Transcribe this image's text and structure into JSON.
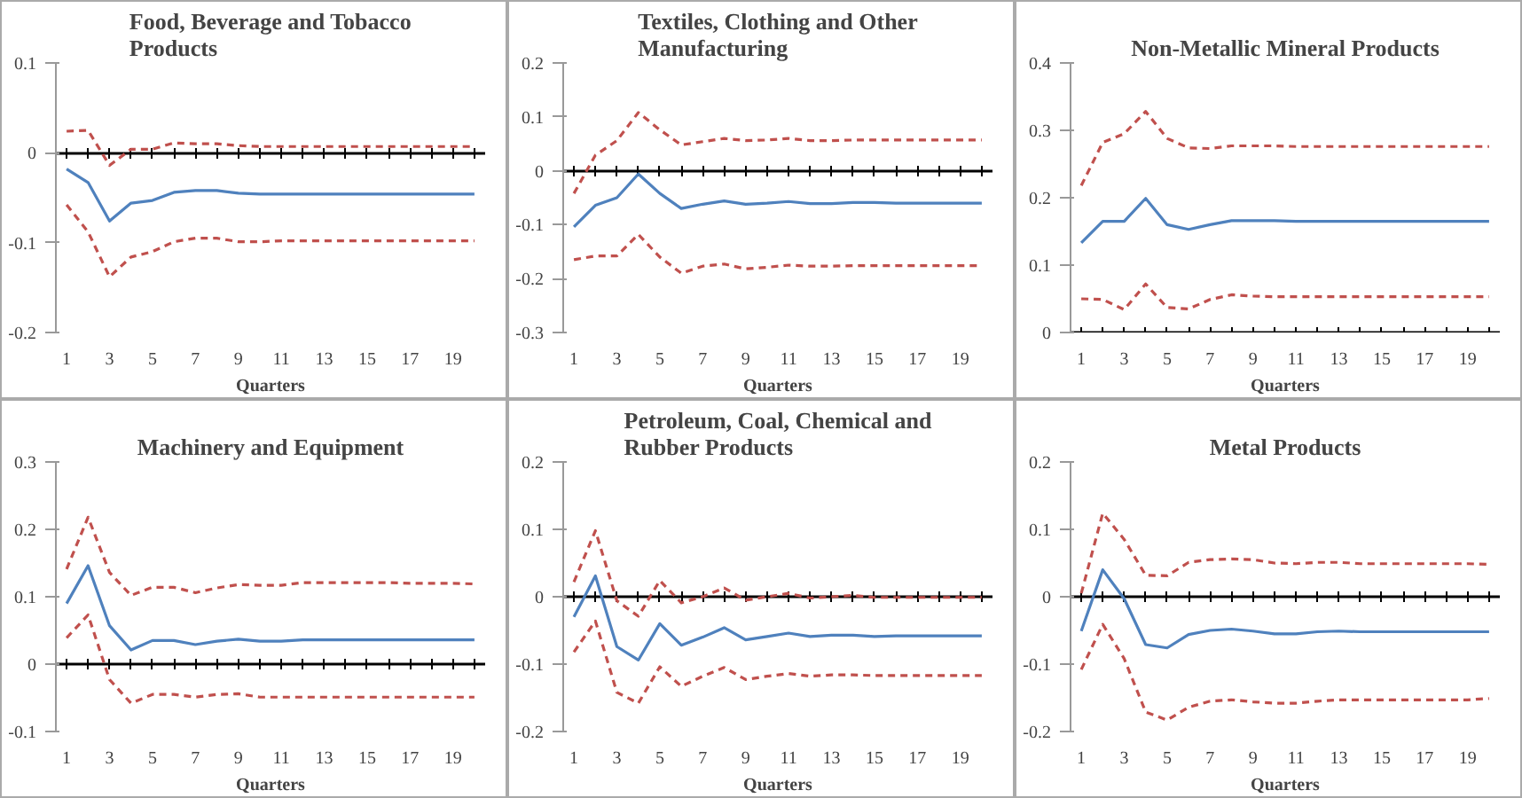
{
  "chart_data": [
    {
      "type": "line",
      "title": "Food, Beverage and Tobacco\nProducts",
      "xlabel": "Quarters",
      "x": [
        1,
        2,
        3,
        4,
        5,
        6,
        7,
        8,
        9,
        10,
        11,
        12,
        13,
        14,
        15,
        16,
        17,
        18,
        19,
        20
      ],
      "xlim": [
        0.5,
        20.5
      ],
      "xticks": [
        1,
        3,
        5,
        7,
        9,
        11,
        13,
        15,
        17,
        19
      ],
      "ylim": [
        -0.2,
        0.1
      ],
      "yticks": [
        {
          "value": -0.2,
          "label": "-0.2"
        },
        {
          "value": -0.1,
          "label": "-0.1"
        },
        0,
        {
          "value": 0.1,
          "label": "0.1"
        }
      ],
      "series": [
        {
          "color": "#4f81bd",
          "line_style": "solid",
          "values": [
            -0.018,
            -0.033,
            -0.076,
            -0.056,
            -0.053,
            -0.044,
            -0.042,
            -0.042,
            -0.045,
            -0.046,
            -0.046,
            -0.046,
            -0.046,
            -0.046,
            -0.046,
            -0.046,
            -0.046,
            -0.046,
            -0.046,
            -0.046
          ]
        },
        {
          "color": "#c0504d",
          "line_style": "dashed",
          "values": [
            0.024,
            0.025,
            -0.014,
            0.004,
            0.004,
            0.011,
            0.01,
            0.01,
            0.008,
            0.007,
            0.007,
            0.007,
            0.007,
            0.007,
            0.007,
            0.007,
            0.007,
            0.007,
            0.007,
            0.007
          ]
        },
        {
          "color": "#c0504d",
          "line_style": "dashed",
          "values": [
            -0.058,
            -0.088,
            -0.138,
            -0.116,
            -0.11,
            -0.099,
            -0.095,
            -0.095,
            -0.099,
            -0.099,
            -0.098,
            -0.098,
            -0.098,
            -0.098,
            -0.098,
            -0.098,
            -0.098,
            -0.098,
            -0.098,
            -0.098
          ]
        }
      ]
    },
    {
      "type": "line",
      "title": "Textiles, Clothing and Other\nManufacturing",
      "xlabel": "Quarters",
      "x": [
        1,
        2,
        3,
        4,
        5,
        6,
        7,
        8,
        9,
        10,
        11,
        12,
        13,
        14,
        15,
        16,
        17,
        18,
        19,
        20
      ],
      "xlim": [
        0.5,
        20.5
      ],
      "xticks": [
        1,
        3,
        5,
        7,
        9,
        11,
        13,
        15,
        17,
        19
      ],
      "ylim": [
        -0.3,
        0.2
      ],
      "yticks": [
        {
          "value": -0.3,
          "label": "-0.3"
        },
        {
          "value": -0.2,
          "label": "-0.2"
        },
        {
          "value": -0.1,
          "label": "-0.1"
        },
        0,
        {
          "value": 0.1,
          "label": "0.1"
        },
        {
          "value": 0.2,
          "label": "0.2"
        }
      ],
      "series": [
        {
          "color": "#4f81bd",
          "line_style": "solid",
          "values": [
            -0.104,
            -0.064,
            -0.05,
            -0.006,
            -0.042,
            -0.07,
            -0.062,
            -0.056,
            -0.062,
            -0.06,
            -0.057,
            -0.061,
            -0.061,
            -0.059,
            -0.059,
            -0.06,
            -0.06,
            -0.06,
            -0.06,
            -0.06
          ]
        },
        {
          "color": "#c0504d",
          "line_style": "dashed",
          "values": [
            -0.042,
            0.029,
            0.056,
            0.108,
            0.076,
            0.048,
            0.054,
            0.06,
            0.056,
            0.057,
            0.06,
            0.056,
            0.056,
            0.057,
            0.057,
            0.057,
            0.057,
            0.057,
            0.057,
            0.057
          ]
        },
        {
          "color": "#c0504d",
          "line_style": "dashed",
          "values": [
            -0.165,
            -0.158,
            -0.158,
            -0.118,
            -0.16,
            -0.19,
            -0.177,
            -0.173,
            -0.182,
            -0.179,
            -0.175,
            -0.177,
            -0.177,
            -0.176,
            -0.176,
            -0.176,
            -0.176,
            -0.176,
            -0.176,
            -0.176
          ]
        }
      ]
    },
    {
      "type": "line",
      "title": "Non-Metallic Mineral Products",
      "xlabel": "Quarters",
      "x": [
        1,
        2,
        3,
        4,
        5,
        6,
        7,
        8,
        9,
        10,
        11,
        12,
        13,
        14,
        15,
        16,
        17,
        18,
        19,
        20
      ],
      "xlim": [
        0.5,
        20.5
      ],
      "xticks": [
        1,
        3,
        5,
        7,
        9,
        11,
        13,
        15,
        17,
        19
      ],
      "ylim": [
        0,
        0.4
      ],
      "yticks": [
        0,
        {
          "value": 0.1,
          "label": "0.1"
        },
        {
          "value": 0.2,
          "label": "0.2"
        },
        {
          "value": 0.3,
          "label": "0.3"
        },
        {
          "value": 0.4,
          "label": "0.4"
        }
      ],
      "series": [
        {
          "color": "#4f81bd",
          "line_style": "solid",
          "values": [
            0.133,
            0.165,
            0.165,
            0.199,
            0.16,
            0.153,
            0.16,
            0.166,
            0.166,
            0.166,
            0.165,
            0.165,
            0.165,
            0.165,
            0.165,
            0.165,
            0.165,
            0.165,
            0.165,
            0.165
          ]
        },
        {
          "color": "#c0504d",
          "line_style": "dashed",
          "values": [
            0.218,
            0.282,
            0.295,
            0.328,
            0.288,
            0.274,
            0.273,
            0.277,
            0.277,
            0.277,
            0.276,
            0.276,
            0.276,
            0.276,
            0.276,
            0.276,
            0.276,
            0.276,
            0.276,
            0.276
          ]
        },
        {
          "color": "#c0504d",
          "line_style": "dashed",
          "values": [
            0.05,
            0.049,
            0.034,
            0.072,
            0.037,
            0.035,
            0.049,
            0.056,
            0.054,
            0.053,
            0.053,
            0.053,
            0.053,
            0.053,
            0.053,
            0.053,
            0.053,
            0.053,
            0.053,
            0.053
          ]
        }
      ]
    },
    {
      "type": "line",
      "title": "Machinery and Equipment",
      "xlabel": "Quarters",
      "x": [
        1,
        2,
        3,
        4,
        5,
        6,
        7,
        8,
        9,
        10,
        11,
        12,
        13,
        14,
        15,
        16,
        17,
        18,
        19,
        20
      ],
      "xlim": [
        0.5,
        20.5
      ],
      "xticks": [
        1,
        3,
        5,
        7,
        9,
        11,
        13,
        15,
        17,
        19
      ],
      "ylim": [
        -0.1,
        0.3
      ],
      "yticks": [
        {
          "value": -0.1,
          "label": "-0.1"
        },
        0,
        {
          "value": 0.1,
          "label": "0.1"
        },
        {
          "value": 0.2,
          "label": "0.2"
        },
        {
          "value": 0.3,
          "label": "0.3"
        }
      ],
      "series": [
        {
          "color": "#4f81bd",
          "line_style": "solid",
          "values": [
            0.09,
            0.146,
            0.057,
            0.021,
            0.035,
            0.035,
            0.029,
            0.034,
            0.037,
            0.034,
            0.034,
            0.036,
            0.036,
            0.036,
            0.036,
            0.036,
            0.036,
            0.036,
            0.036,
            0.036
          ]
        },
        {
          "color": "#c0504d",
          "line_style": "dashed",
          "values": [
            0.141,
            0.218,
            0.136,
            0.102,
            0.114,
            0.114,
            0.106,
            0.113,
            0.118,
            0.117,
            0.117,
            0.121,
            0.121,
            0.121,
            0.121,
            0.121,
            0.12,
            0.12,
            0.12,
            0.119
          ]
        },
        {
          "color": "#c0504d",
          "line_style": "dashed",
          "values": [
            0.039,
            0.073,
            -0.023,
            -0.058,
            -0.045,
            -0.045,
            -0.049,
            -0.045,
            -0.044,
            -0.049,
            -0.049,
            -0.049,
            -0.049,
            -0.049,
            -0.049,
            -0.049,
            -0.049,
            -0.049,
            -0.049,
            -0.049
          ]
        }
      ]
    },
    {
      "type": "line",
      "title": "Petroleum, Coal, Chemical and\nRubber Products",
      "xlabel": "Quarters",
      "x": [
        1,
        2,
        3,
        4,
        5,
        6,
        7,
        8,
        9,
        10,
        11,
        12,
        13,
        14,
        15,
        16,
        17,
        18,
        19,
        20
      ],
      "xlim": [
        0.5,
        20.5
      ],
      "xticks": [
        1,
        3,
        5,
        7,
        9,
        11,
        13,
        15,
        17,
        19
      ],
      "ylim": [
        -0.2,
        0.2
      ],
      "yticks": [
        {
          "value": -0.2,
          "label": "-0.2"
        },
        {
          "value": -0.1,
          "label": "-0.1"
        },
        0,
        {
          "value": 0.1,
          "label": "0.1"
        },
        {
          "value": 0.2,
          "label": "0.2"
        }
      ],
      "series": [
        {
          "color": "#4f81bd",
          "line_style": "solid",
          "values": [
            -0.03,
            0.031,
            -0.074,
            -0.094,
            -0.04,
            -0.072,
            -0.06,
            -0.046,
            -0.064,
            -0.059,
            -0.054,
            -0.059,
            -0.057,
            -0.057,
            -0.059,
            -0.058,
            -0.058,
            -0.058,
            -0.058,
            -0.058
          ]
        },
        {
          "color": "#c0504d",
          "line_style": "dashed",
          "values": [
            0.022,
            0.098,
            -0.006,
            -0.029,
            0.024,
            -0.009,
            0.0,
            0.013,
            -0.005,
            0.0,
            0.005,
            -0.002,
            0.0,
            0.002,
            -0.001,
            -0.001,
            -0.001,
            -0.001,
            -0.001,
            -0.001
          ]
        },
        {
          "color": "#c0504d",
          "line_style": "dashed",
          "values": [
            -0.082,
            -0.036,
            -0.142,
            -0.158,
            -0.104,
            -0.133,
            -0.118,
            -0.105,
            -0.123,
            -0.118,
            -0.114,
            -0.118,
            -0.116,
            -0.116,
            -0.117,
            -0.117,
            -0.117,
            -0.117,
            -0.117,
            -0.117
          ]
        }
      ]
    },
    {
      "type": "line",
      "title": "Metal Products",
      "xlabel": "Quarters",
      "x": [
        1,
        2,
        3,
        4,
        5,
        6,
        7,
        8,
        9,
        10,
        11,
        12,
        13,
        14,
        15,
        16,
        17,
        18,
        19,
        20
      ],
      "xlim": [
        0.5,
        20.5
      ],
      "xticks": [
        1,
        3,
        5,
        7,
        9,
        11,
        13,
        15,
        17,
        19
      ],
      "ylim": [
        -0.2,
        0.2
      ],
      "yticks": [
        {
          "value": -0.2,
          "label": "-0.2"
        },
        {
          "value": -0.1,
          "label": "-0.1"
        },
        0,
        {
          "value": 0.1,
          "label": "0.1"
        },
        {
          "value": 0.2,
          "label": "0.2"
        }
      ],
      "series": [
        {
          "color": "#4f81bd",
          "line_style": "solid",
          "values": [
            -0.051,
            0.04,
            -0.003,
            -0.071,
            -0.076,
            -0.056,
            -0.05,
            -0.048,
            -0.051,
            -0.055,
            -0.055,
            -0.052,
            -0.051,
            -0.052,
            -0.052,
            -0.052,
            -0.052,
            -0.052,
            -0.052,
            -0.052
          ]
        },
        {
          "color": "#c0504d",
          "line_style": "dashed",
          "values": [
            0.005,
            0.124,
            0.085,
            0.032,
            0.031,
            0.051,
            0.055,
            0.056,
            0.055,
            0.05,
            0.049,
            0.051,
            0.051,
            0.049,
            0.049,
            0.049,
            0.049,
            0.049,
            0.049,
            0.048
          ]
        },
        {
          "color": "#c0504d",
          "line_style": "dashed",
          "values": [
            -0.108,
            -0.041,
            -0.092,
            -0.171,
            -0.183,
            -0.164,
            -0.155,
            -0.153,
            -0.156,
            -0.158,
            -0.158,
            -0.155,
            -0.153,
            -0.153,
            -0.153,
            -0.153,
            -0.153,
            -0.153,
            -0.153,
            -0.151
          ]
        }
      ]
    }
  ]
}
